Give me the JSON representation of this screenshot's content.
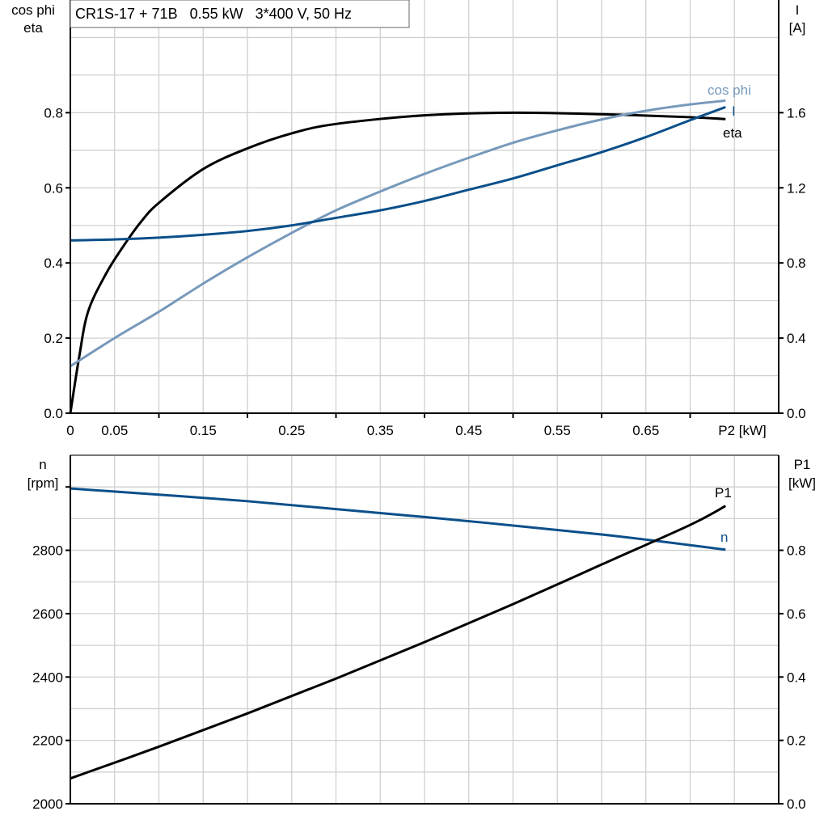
{
  "chart_data": [
    {
      "type": "line",
      "title": "CR1S-17 + 71B   0.55 kW   3*400 V, 50 Hz",
      "xlabel": "P2 [kW]",
      "ylabel_left": [
        "cos phi",
        "eta"
      ],
      "ylabel_right": [
        "I",
        "[A]"
      ],
      "xlim": [
        0,
        0.8
      ],
      "ylim_left": [
        0,
        1.1
      ],
      "ylim_right": [
        0,
        2.2
      ],
      "x_tick_labels": [
        "0",
        "0.05",
        "0.15",
        "0.25",
        "0.35",
        "0.45",
        "0.55",
        "0.65"
      ],
      "y_left_tick_labels": [
        "0.0",
        "0.2",
        "0.4",
        "0.6",
        "0.8"
      ],
      "y_right_tick_labels": [
        "0.0",
        "0.4",
        "0.8",
        "1.2",
        "1.6"
      ],
      "grid": true,
      "series": [
        {
          "name": "eta",
          "axis": "left",
          "color": "#000000",
          "x": [
            0,
            0.01,
            0.02,
            0.04,
            0.06,
            0.08,
            0.1,
            0.15,
            0.2,
            0.25,
            0.3,
            0.4,
            0.5,
            0.6,
            0.7,
            0.74
          ],
          "y": [
            0,
            0.15,
            0.27,
            0.37,
            0.445,
            0.51,
            0.56,
            0.65,
            0.705,
            0.745,
            0.77,
            0.793,
            0.8,
            0.796,
            0.788,
            0.783
          ]
        },
        {
          "name": "cos phi",
          "axis": "left",
          "color": "#7799bb",
          "x": [
            0,
            0.05,
            0.1,
            0.15,
            0.2,
            0.25,
            0.3,
            0.35,
            0.4,
            0.45,
            0.5,
            0.55,
            0.6,
            0.65,
            0.7,
            0.74
          ],
          "y": [
            0.125,
            0.2,
            0.27,
            0.345,
            0.415,
            0.48,
            0.54,
            0.59,
            0.637,
            0.68,
            0.72,
            0.753,
            0.782,
            0.805,
            0.822,
            0.832
          ]
        },
        {
          "name": "I",
          "axis": "right",
          "color": "#0b4f8a",
          "x": [
            0,
            0.05,
            0.1,
            0.15,
            0.2,
            0.25,
            0.3,
            0.35,
            0.4,
            0.45,
            0.5,
            0.55,
            0.6,
            0.65,
            0.7,
            0.74
          ],
          "y": [
            0.92,
            0.925,
            0.935,
            0.95,
            0.97,
            1.0,
            1.04,
            1.08,
            1.13,
            1.19,
            1.25,
            1.32,
            1.39,
            1.47,
            1.56,
            1.63
          ]
        }
      ]
    },
    {
      "type": "line",
      "xlim": [
        0,
        0.8
      ],
      "ylabel_left": [
        "n",
        "[rpm]"
      ],
      "ylabel_right": [
        "P1",
        "[kW]"
      ],
      "ylim_left": [
        2000,
        3100
      ],
      "ylim_right": [
        0,
        1.1
      ],
      "y_left_tick_labels": [
        "2000",
        "2200",
        "2400",
        "2600",
        "2800"
      ],
      "y_right_tick_labels": [
        "0.0",
        "0.2",
        "0.4",
        "0.6",
        "0.8"
      ],
      "grid": true,
      "series": [
        {
          "name": "n",
          "axis": "left",
          "color": "#0b4f8a",
          "x": [
            0,
            0.2,
            0.4,
            0.6,
            0.74
          ],
          "y": [
            2995,
            2955,
            2905,
            2850,
            2802
          ]
        },
        {
          "name": "P1",
          "axis": "right",
          "color": "#000000",
          "x": [
            0,
            0.1,
            0.2,
            0.3,
            0.4,
            0.5,
            0.6,
            0.7,
            0.74
          ],
          "y": [
            0.08,
            0.18,
            0.285,
            0.395,
            0.51,
            0.63,
            0.755,
            0.88,
            0.94
          ]
        }
      ]
    }
  ]
}
